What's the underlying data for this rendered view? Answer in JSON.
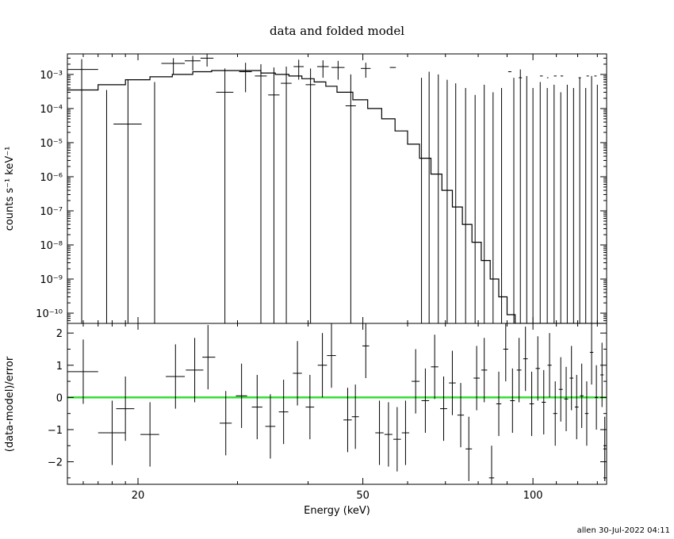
{
  "footer": "allen 30-Jul-2022 04:11",
  "chart_data": {
    "title": "data and folded model",
    "x_axis": {
      "label": "Energy (keV)",
      "scale": "log",
      "range": [
        15,
        135
      ],
      "ticks": [
        20,
        50,
        100
      ],
      "tick_labels": [
        "20",
        "50",
        "100"
      ]
    },
    "panels": [
      {
        "id": "spectrum",
        "type": "step+errorbar",
        "ylabel": "counts s⁻¹ keV⁻¹",
        "yscale": "log",
        "ylim": [
          5e-11,
          0.004
        ],
        "ytick_labels": [
          "10⁻¹⁰",
          "10⁻⁹",
          "10⁻⁸",
          "10⁻⁷",
          "10⁻⁶",
          "10⁻⁵",
          "10⁻⁴",
          "10⁻³"
        ],
        "ytick_values": [
          1e-10,
          1e-09,
          1e-08,
          1e-07,
          1e-06,
          1e-05,
          0.0001,
          0.001
        ],
        "model": {
          "edges": [
            15,
            17,
            19,
            21,
            23,
            25,
            27,
            29,
            31,
            33,
            35,
            37,
            39,
            41,
            43,
            45,
            48,
            51,
            54,
            57,
            60,
            63,
            66,
            69,
            72,
            75,
            78,
            81,
            84,
            87,
            90,
            93,
            96,
            99,
            102,
            105,
            108,
            111,
            114,
            117,
            120,
            123,
            126,
            129,
            132,
            135
          ],
          "values": [
            0.00035,
            0.0005,
            0.0007,
            0.00085,
            0.001,
            0.0012,
            0.0013,
            0.0013,
            0.0013,
            0.0011,
            0.001,
            0.0009,
            0.00075,
            0.0006,
            0.00045,
            0.0003,
            0.00018,
            0.0001,
            5e-05,
            2.2e-05,
            9e-06,
            3.5e-06,
            1.2e-06,
            4e-07,
            1.3e-07,
            4e-08,
            1.2e-08,
            3.5e-09,
            1e-09,
            3e-10,
            9e-11,
            3e-11,
            1e-11,
            1e-11,
            1e-11,
            1e-11,
            1e-11,
            1e-11,
            1e-11,
            1e-11,
            1e-11,
            1e-11,
            1e-11,
            1e-11,
            1e-11
          ]
        },
        "data": [
          {
            "x": 15.9,
            "xlo": 15.0,
            "xhi": 17.0,
            "y": 0.0014,
            "ylo": 0,
            "yhi": 0.0028
          },
          {
            "x": 19.2,
            "xlo": 18.1,
            "xhi": 20.3,
            "y": 3.5e-05,
            "ylo": 0,
            "yhi": 0.0007
          },
          {
            "x": 23.1,
            "xlo": 22.0,
            "xhi": 24.2,
            "y": 0.0021,
            "ylo": 0.001,
            "yhi": 0.003
          },
          {
            "x": 25.0,
            "xlo": 24.2,
            "xhi": 25.8,
            "y": 0.0025,
            "ylo": 0.0013,
            "yhi": 0.0035
          },
          {
            "x": 26.5,
            "xlo": 25.8,
            "xhi": 27.2,
            "y": 0.003,
            "ylo": 0.0017,
            "yhi": 0.004
          },
          {
            "x": 28.5,
            "xlo": 27.5,
            "xhi": 29.5,
            "y": 0.0003,
            "ylo": 0,
            "yhi": 0.0015
          },
          {
            "x": 31.0,
            "xlo": 30.2,
            "xhi": 31.8,
            "y": 0.0012,
            "ylo": 0.0003,
            "yhi": 0.0022
          },
          {
            "x": 33.0,
            "xlo": 32.2,
            "xhi": 33.8,
            "y": 0.0009,
            "ylo": 0,
            "yhi": 0.002
          },
          {
            "x": 34.8,
            "xlo": 34.0,
            "xhi": 35.6,
            "y": 0.00025,
            "ylo": 0,
            "yhi": 0.0016
          },
          {
            "x": 36.6,
            "xlo": 35.8,
            "xhi": 37.4,
            "y": 0.00055,
            "ylo": 0,
            "yhi": 0.0017
          },
          {
            "x": 38.5,
            "xlo": 37.7,
            "xhi": 39.3,
            "y": 0.0017,
            "ylo": 0.0007,
            "yhi": 0.0027
          },
          {
            "x": 40.4,
            "xlo": 39.6,
            "xhi": 41.2,
            "y": 0.0005,
            "ylo": 0,
            "yhi": 0.0015
          },
          {
            "x": 42.5,
            "xlo": 41.5,
            "xhi": 43.5,
            "y": 0.0017,
            "ylo": 0.0008,
            "yhi": 0.0026
          },
          {
            "x": 45.2,
            "xlo": 44.0,
            "xhi": 46.4,
            "y": 0.0016,
            "ylo": 0.0007,
            "yhi": 0.0025
          },
          {
            "x": 47.6,
            "xlo": 46.6,
            "xhi": 48.6,
            "y": 0.00012,
            "ylo": 0,
            "yhi": 0.001
          },
          {
            "x": 50.6,
            "xlo": 49.6,
            "xhi": 51.6,
            "y": 0.0015,
            "ylo": 0.0008,
            "yhi": 0.0022
          }
        ],
        "upper_limits": [
          {
            "x": 17.6,
            "yhi": 0.00035
          },
          {
            "x": 21.4,
            "yhi": 0.0006
          },
          {
            "x": 63.5,
            "yhi": 0.0008
          },
          {
            "x": 65.5,
            "yhi": 0.0012
          },
          {
            "x": 68.0,
            "yhi": 0.001
          },
          {
            "x": 70.5,
            "yhi": 0.0007
          },
          {
            "x": 73.0,
            "yhi": 0.00055
          },
          {
            "x": 76.0,
            "yhi": 0.0004
          },
          {
            "x": 79.0,
            "yhi": 0.00025
          },
          {
            "x": 82.0,
            "yhi": 0.0005
          },
          {
            "x": 85.0,
            "yhi": 0.0003
          },
          {
            "x": 88.0,
            "yhi": 0.0004
          },
          {
            "x": 92.5,
            "yhi": 0.0008
          },
          {
            "x": 95.0,
            "yhi": 0.0014
          },
          {
            "x": 97.5,
            "yhi": 0.0009
          },
          {
            "x": 100.0,
            "yhi": 0.0004
          },
          {
            "x": 103.0,
            "yhi": 0.0006
          },
          {
            "x": 106.0,
            "yhi": 0.0004
          },
          {
            "x": 109.0,
            "yhi": 0.0005
          },
          {
            "x": 112.0,
            "yhi": 0.0003
          },
          {
            "x": 115.0,
            "yhi": 0.0005
          },
          {
            "x": 118.0,
            "yhi": 0.0004
          },
          {
            "x": 121.0,
            "yhi": 0.0008
          },
          {
            "x": 124.0,
            "yhi": 0.0004
          },
          {
            "x": 127.0,
            "yhi": 0.0009
          },
          {
            "x": 130.0,
            "yhi": 0.0005
          }
        ],
        "upper_limit_caps": [
          {
            "x": 56.5,
            "y": 0.0016,
            "xlo": 55.8,
            "xhi": 57.2
          },
          {
            "x": 91.0,
            "y": 0.0012,
            "xlo": 90.4,
            "xhi": 91.6
          },
          {
            "x": 95.0,
            "y": 0.0008,
            "xlo": 94.4,
            "xhi": 95.6
          },
          {
            "x": 103.5,
            "y": 0.0009,
            "xlo": 102.9,
            "xhi": 104.1
          },
          {
            "x": 106.5,
            "y": 0.0008,
            "xlo": 105.9,
            "xhi": 106.5
          },
          {
            "x": 109.5,
            "y": 0.0009,
            "xlo": 108.9,
            "xhi": 110.1
          },
          {
            "x": 112.5,
            "y": 0.0009,
            "xlo": 111.9,
            "xhi": 113.1
          },
          {
            "x": 121.0,
            "y": 0.0008,
            "xlo": 120.4,
            "xhi": 121.6
          },
          {
            "x": 125.0,
            "y": 0.0009,
            "xlo": 124.4,
            "xhi": 125.6
          },
          {
            "x": 129.0,
            "y": 0.0009,
            "xlo": 128.4,
            "xhi": 129.6
          }
        ]
      },
      {
        "id": "residuals",
        "type": "errorbar",
        "ylabel": "(data-model)/error",
        "yscale": "linear",
        "ylim": [
          -2.7,
          2.3
        ],
        "ytick_values": [
          -2,
          -1,
          0,
          1,
          2
        ],
        "ytick_labels": [
          "−2",
          "−1",
          "0",
          "1",
          "2"
        ],
        "zero_line_color": "#33dd33",
        "data": [
          {
            "x": 16.0,
            "xlo": 15.0,
            "xhi": 17.0,
            "y": 0.8,
            "ylo": -0.2,
            "yhi": 1.8
          },
          {
            "x": 18.0,
            "xlo": 17.0,
            "xhi": 19.0,
            "y": -1.1,
            "ylo": -2.1,
            "yhi": -0.1
          },
          {
            "x": 19.0,
            "xlo": 18.3,
            "xhi": 19.7,
            "y": -0.35,
            "ylo": -1.35,
            "yhi": 0.65
          },
          {
            "x": 21.0,
            "xlo": 20.2,
            "xhi": 21.8,
            "y": -1.15,
            "ylo": -2.15,
            "yhi": -0.15
          },
          {
            "x": 23.3,
            "xlo": 22.4,
            "xhi": 24.2,
            "y": 0.65,
            "ylo": -0.35,
            "yhi": 1.65
          },
          {
            "x": 25.2,
            "xlo": 24.3,
            "xhi": 26.1,
            "y": 0.85,
            "ylo": -0.15,
            "yhi": 1.85
          },
          {
            "x": 26.6,
            "xlo": 26.0,
            "xhi": 27.4,
            "y": 1.25,
            "ylo": 0.25,
            "yhi": 2.25
          },
          {
            "x": 28.6,
            "xlo": 27.9,
            "xhi": 29.3,
            "y": -0.8,
            "ylo": -1.8,
            "yhi": 0.2
          },
          {
            "x": 30.5,
            "xlo": 29.8,
            "xhi": 31.2,
            "y": 0.05,
            "ylo": -0.95,
            "yhi": 1.05
          },
          {
            "x": 32.5,
            "xlo": 31.8,
            "xhi": 33.2,
            "y": -0.3,
            "ylo": -1.3,
            "yhi": 0.7
          },
          {
            "x": 34.3,
            "xlo": 33.6,
            "xhi": 35.0,
            "y": -0.9,
            "ylo": -1.9,
            "yhi": 0.1
          },
          {
            "x": 36.2,
            "xlo": 35.5,
            "xhi": 36.9,
            "y": -0.45,
            "ylo": -1.45,
            "yhi": 0.55
          },
          {
            "x": 38.3,
            "xlo": 37.6,
            "xhi": 39.0,
            "y": 0.75,
            "ylo": -0.25,
            "yhi": 1.75
          },
          {
            "x": 40.3,
            "xlo": 39.6,
            "xhi": 41.0,
            "y": -0.3,
            "ylo": -1.3,
            "yhi": 0.7
          },
          {
            "x": 42.4,
            "xlo": 41.6,
            "xhi": 43.2,
            "y": 1.0,
            "ylo": 0.0,
            "yhi": 2.0
          },
          {
            "x": 44.0,
            "xlo": 43.2,
            "xhi": 44.8,
            "y": 1.3,
            "ylo": 0.3,
            "yhi": 2.3
          },
          {
            "x": 47.0,
            "xlo": 46.2,
            "xhi": 47.8,
            "y": -0.7,
            "ylo": -1.7,
            "yhi": 0.3
          },
          {
            "x": 48.5,
            "xlo": 47.8,
            "xhi": 49.2,
            "y": -0.6,
            "ylo": -1.6,
            "yhi": 0.4
          },
          {
            "x": 50.6,
            "xlo": 49.9,
            "xhi": 51.3,
            "y": 1.6,
            "ylo": 0.6,
            "yhi": 2.6
          },
          {
            "x": 53.5,
            "xlo": 52.6,
            "xhi": 54.4,
            "y": -1.1,
            "ylo": -2.1,
            "yhi": -0.1
          },
          {
            "x": 55.5,
            "xlo": 54.6,
            "xhi": 56.4,
            "y": -1.15,
            "ylo": -2.15,
            "yhi": -0.15
          },
          {
            "x": 57.5,
            "xlo": 56.6,
            "xhi": 58.4,
            "y": -1.3,
            "ylo": -2.3,
            "yhi": -0.3
          },
          {
            "x": 59.5,
            "xlo": 58.6,
            "xhi": 60.4,
            "y": -1.1,
            "ylo": -2.1,
            "yhi": -0.1
          },
          {
            "x": 62.0,
            "xlo": 61.0,
            "xhi": 63.0,
            "y": 0.5,
            "ylo": -0.5,
            "yhi": 1.5
          },
          {
            "x": 64.5,
            "xlo": 63.5,
            "xhi": 65.5,
            "y": -0.1,
            "ylo": -1.1,
            "yhi": 0.9
          },
          {
            "x": 67.0,
            "xlo": 66.0,
            "xhi": 68.0,
            "y": 0.95,
            "ylo": -0.05,
            "yhi": 1.95
          },
          {
            "x": 69.5,
            "xlo": 68.5,
            "xhi": 70.5,
            "y": -0.35,
            "ylo": -1.35,
            "yhi": 0.65
          },
          {
            "x": 72.0,
            "xlo": 71.0,
            "xhi": 73.0,
            "y": 0.45,
            "ylo": -0.55,
            "yhi": 1.45
          },
          {
            "x": 74.5,
            "xlo": 73.5,
            "xhi": 75.5,
            "y": -0.55,
            "ylo": -1.55,
            "yhi": 0.45
          },
          {
            "x": 77.0,
            "xlo": 76.0,
            "xhi": 78.0,
            "y": -1.6,
            "ylo": -2.6,
            "yhi": -0.6
          },
          {
            "x": 79.5,
            "xlo": 78.5,
            "xhi": 80.5,
            "y": 0.6,
            "ylo": -0.4,
            "yhi": 1.6
          },
          {
            "x": 82.0,
            "xlo": 81.0,
            "xhi": 83.0,
            "y": 0.85,
            "ylo": -0.15,
            "yhi": 1.85
          },
          {
            "x": 84.5,
            "xlo": 83.6,
            "xhi": 85.4,
            "y": -2.5,
            "ylo": -3.5,
            "yhi": -1.5
          },
          {
            "x": 87.0,
            "xlo": 86.1,
            "xhi": 87.9,
            "y": -0.2,
            "ylo": -1.2,
            "yhi": 0.8
          },
          {
            "x": 89.5,
            "xlo": 88.6,
            "xhi": 90.4,
            "y": 1.5,
            "ylo": 0.5,
            "yhi": 2.5
          },
          {
            "x": 92.0,
            "xlo": 91.1,
            "xhi": 92.9,
            "y": -0.1,
            "ylo": -1.1,
            "yhi": 0.9
          },
          {
            "x": 94.5,
            "xlo": 93.6,
            "xhi": 95.4,
            "y": 0.85,
            "ylo": -0.15,
            "yhi": 1.85
          },
          {
            "x": 97.0,
            "xlo": 96.1,
            "xhi": 97.9,
            "y": 1.2,
            "ylo": 0.2,
            "yhi": 2.2
          },
          {
            "x": 99.5,
            "xlo": 98.6,
            "xhi": 100.4,
            "y": -0.2,
            "ylo": -1.2,
            "yhi": 0.8
          },
          {
            "x": 102.0,
            "xlo": 101.1,
            "xhi": 102.9,
            "y": 0.9,
            "ylo": -0.1,
            "yhi": 1.9
          },
          {
            "x": 104.5,
            "xlo": 103.6,
            "xhi": 105.4,
            "y": -0.15,
            "ylo": -1.15,
            "yhi": 0.85
          },
          {
            "x": 107.0,
            "xlo": 106.1,
            "xhi": 107.9,
            "y": 1.0,
            "ylo": 0.0,
            "yhi": 2.0
          },
          {
            "x": 109.5,
            "xlo": 108.6,
            "xhi": 110.4,
            "y": -0.5,
            "ylo": -1.5,
            "yhi": 0.5
          },
          {
            "x": 112.0,
            "xlo": 111.1,
            "xhi": 112.9,
            "y": 0.25,
            "ylo": -0.75,
            "yhi": 1.25
          },
          {
            "x": 114.5,
            "xlo": 113.6,
            "xhi": 115.4,
            "y": -0.05,
            "ylo": -1.05,
            "yhi": 0.95
          },
          {
            "x": 117.0,
            "xlo": 116.1,
            "xhi": 117.9,
            "y": 0.6,
            "ylo": -0.4,
            "yhi": 1.6
          },
          {
            "x": 119.5,
            "xlo": 118.6,
            "xhi": 120.4,
            "y": -0.3,
            "ylo": -1.3,
            "yhi": 0.7
          },
          {
            "x": 122.0,
            "xlo": 121.1,
            "xhi": 122.9,
            "y": 0.05,
            "ylo": -0.95,
            "yhi": 1.05
          },
          {
            "x": 124.5,
            "xlo": 123.6,
            "xhi": 125.4,
            "y": -0.5,
            "ylo": -1.5,
            "yhi": 0.5
          },
          {
            "x": 127.0,
            "xlo": 126.1,
            "xhi": 127.9,
            "y": 1.4,
            "ylo": 0.4,
            "yhi": 2.4
          },
          {
            "x": 129.5,
            "xlo": 128.6,
            "xhi": 130.4,
            "y": 0.0,
            "ylo": -1.0,
            "yhi": 1.0
          },
          {
            "x": 132.5,
            "xlo": 131.6,
            "xhi": 133.4,
            "y": 0.7,
            "ylo": -0.3,
            "yhi": 1.7
          },
          {
            "x": 134.0,
            "xlo": 133.2,
            "xhi": 134.8,
            "y": -1.6,
            "ylo": -2.6,
            "yhi": -0.6
          }
        ]
      }
    ]
  }
}
